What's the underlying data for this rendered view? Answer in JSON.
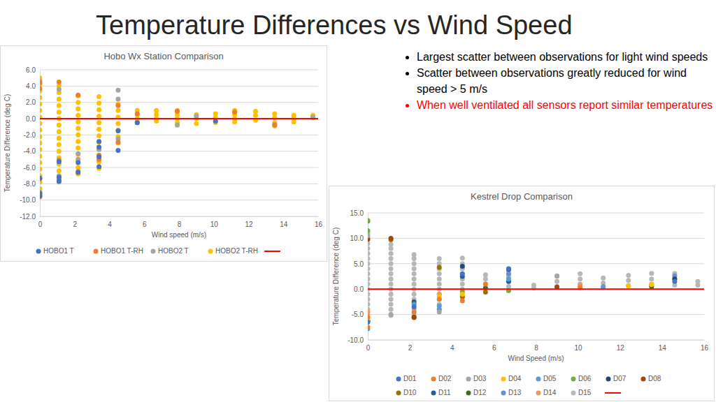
{
  "slide": {
    "title": "Temperature Differences vs Wind Speed",
    "bullets": [
      {
        "text": "Largest scatter between observations for light wind speeds",
        "color": "#000000"
      },
      {
        "text": "Scatter between observations greatly reduced for wind speed > 5 m/s",
        "color": "#000000"
      },
      {
        "text": "When well ventilated all sensors report similar temperatures",
        "color": "#ff0000"
      }
    ]
  },
  "chart_data": [
    {
      "type": "scatter",
      "title": "Hobo Wx Station Comparison",
      "xlabel": "Wind speed (m/s)",
      "ylabel": "Temperature Difference (deg C)",
      "xlim": [
        0,
        16
      ],
      "xticks": [
        0,
        2,
        4,
        6,
        8,
        10,
        12,
        14,
        16
      ],
      "ylim": [
        -12,
        6
      ],
      "yticks": [
        {
          "value": 6,
          "label": "6.0"
        },
        {
          "value": 4,
          "label": "4.0"
        },
        {
          "value": 2,
          "label": "2.0"
        },
        {
          "value": 0,
          "label": "0.0"
        },
        {
          "value": -2,
          "label": "-2.0"
        },
        {
          "value": -4,
          "label": "-4.0"
        },
        {
          "value": -6,
          "label": "-6.0"
        },
        {
          "value": -8,
          "label": "-8.0"
        },
        {
          "value": -10,
          "label": "-10.0"
        },
        {
          "value": -12,
          "label": "-12.0"
        }
      ],
      "grid": true,
      "legend": "bottom",
      "marker": "circle",
      "series": [
        {
          "name": "HOBO1 T",
          "color": "#4472c4",
          "x": [
            0,
            0,
            0,
            1.1,
            1.1,
            1.1,
            2.2,
            2.2,
            3.4,
            3.4,
            3.4,
            3.4,
            4.5,
            4.5,
            5.6,
            10.1
          ],
          "values": [
            -9.5,
            -9.2,
            -7.3,
            -5.3,
            -7.2,
            -7.7,
            -5.4,
            -6.6,
            -2.8,
            -3.5,
            -4.7,
            -5.9,
            -3.9,
            -1.5,
            -0.5,
            -0.3
          ]
        },
        {
          "name": "HOBO1 T-RH",
          "color": "#ed7d31",
          "x": [
            0,
            0,
            0,
            0,
            1.1,
            1.1,
            1.1,
            2.2,
            2.2,
            3.4,
            3.4,
            4.5,
            4.5,
            5.6,
            7.9,
            11.2,
            13.5
          ],
          "values": [
            4.4,
            3.7,
            -7.4,
            -9.6,
            4.5,
            -5.1,
            -7.5,
            2.9,
            -6.5,
            -4.5,
            -5.0,
            1.6,
            -2.9,
            0.6,
            0.9,
            0.8,
            -0.8
          ]
        },
        {
          "name": "HOBO2 T",
          "color": "#a5a5a5",
          "x": [
            0,
            0,
            1.1,
            1.1,
            2.2,
            2.2,
            3.4,
            4.5,
            4.5,
            4.5,
            5.6,
            7.9,
            9.0,
            13.5,
            15.7
          ],
          "values": [
            4.6,
            -9.0,
            3.6,
            -7.0,
            -4.3,
            -5.0,
            -3.8,
            3.5,
            2.4,
            -2.5,
            -0.5,
            -0.8,
            0.3,
            -0.7,
            0.2
          ]
        },
        {
          "name": "HOBO2 T-RH",
          "color": "#ffc000",
          "x": [
            0,
            0,
            0,
            0,
            0,
            0,
            0,
            0,
            0,
            0,
            0,
            0,
            0,
            0,
            0,
            0,
            0,
            0,
            0,
            1.1,
            1.1,
            1.1,
            1.1,
            1.1,
            1.1,
            1.1,
            1.1,
            1.1,
            1.1,
            1.1,
            1.1,
            1.1,
            1.1,
            1.1,
            1.1,
            2.2,
            2.2,
            2.2,
            2.2,
            2.2,
            2.2,
            2.2,
            2.2,
            2.2,
            2.2,
            2.2,
            2.2,
            2.2,
            3.4,
            3.4,
            3.4,
            3.4,
            3.4,
            3.4,
            3.4,
            3.4,
            3.4,
            3.4,
            3.4,
            3.4,
            4.5,
            4.5,
            4.5,
            4.5,
            4.5,
            4.5,
            4.5,
            5.6,
            5.6,
            5.6,
            5.6,
            6.7,
            6.7,
            6.7,
            6.7,
            7.9,
            7.9,
            7.9,
            7.9,
            9.0,
            9.0,
            9.0,
            10.1,
            10.1,
            10.1,
            11.2,
            11.2,
            11.2,
            11.2,
            12.4,
            12.4,
            12.4,
            13.5,
            13.5,
            13.5,
            13.5,
            14.6,
            14.6,
            14.6,
            15.7,
            15.7
          ],
          "values": [
            5.0,
            4.2,
            3.4,
            2.6,
            1.8,
            1.0,
            0.2,
            -0.6,
            -1.4,
            -2.2,
            -3.0,
            -3.8,
            -4.6,
            -5.4,
            -6.2,
            -7.0,
            -7.8,
            -8.6,
            -9.3,
            4.0,
            3.2,
            2.4,
            1.6,
            0.8,
            0.0,
            -0.8,
            -1.6,
            -2.4,
            -3.2,
            -4.0,
            -4.8,
            -5.6,
            -6.4,
            -7.2,
            -7.8,
            2.8,
            2.0,
            1.2,
            0.4,
            -0.4,
            -1.2,
            -2.0,
            -2.8,
            -3.6,
            -4.4,
            -5.2,
            -6.0,
            -6.8,
            2.7,
            1.9,
            1.1,
            0.3,
            -0.5,
            -1.3,
            -2.1,
            -2.9,
            -3.7,
            -4.5,
            -5.3,
            -6.1,
            1.8,
            1.0,
            0.2,
            -0.6,
            -1.4,
            -2.2,
            -3.0,
            1.0,
            0.5,
            0.0,
            -0.4,
            1.0,
            0.5,
            0.0,
            -0.3,
            1.0,
            0.5,
            0.0,
            -0.5,
            0.5,
            0.0,
            -0.6,
            0.6,
            0.1,
            -0.5,
            1.0,
            0.5,
            0.0,
            -0.4,
            0.9,
            0.4,
            -0.2,
            0.6,
            0.1,
            -0.5,
            -0.9,
            0.4,
            0.0,
            -0.4,
            0.4,
            0.1
          ]
        },
        {
          "type": "line",
          "color": "#ff0000",
          "line_style": "solid",
          "x": [
            0,
            16
          ],
          "values": [
            0,
            0
          ]
        }
      ]
    },
    {
      "type": "scatter",
      "title": "Kestrel Drop Comparison",
      "xlabel": "Wind Speed (m/s)",
      "ylabel": "Temperature Difference (deg C)",
      "xlim": [
        0,
        16
      ],
      "xticks": [
        0,
        2,
        4,
        6,
        8,
        10,
        12,
        14,
        16
      ],
      "ylim": [
        -10,
        15
      ],
      "yticks": [
        {
          "value": 15,
          "label": "15.0"
        },
        {
          "value": 10,
          "label": "10.0"
        },
        {
          "value": 5,
          "label": "5.0"
        },
        {
          "value": 0,
          "label": "0.0"
        },
        {
          "value": -5,
          "label": "-5.0"
        },
        {
          "value": -10,
          "label": "-10.0"
        }
      ],
      "grid": true,
      "legend": "bottom",
      "marker": "circle",
      "series": [
        {
          "name": "D01",
          "color": "#4472c4",
          "x": [
            0,
            2.2,
            4.5,
            6.7,
            14.6
          ],
          "values": [
            -6.5,
            -3.5,
            3.0,
            4.0,
            1.5
          ]
        },
        {
          "name": "D02",
          "color": "#ed7d31",
          "x": [
            0,
            0,
            2.2,
            3.4,
            4.5,
            5.6,
            10.1
          ],
          "values": [
            -7.5,
            -5.5,
            -4.5,
            -2.0,
            -2.3,
            1.0,
            0.3
          ]
        },
        {
          "name": "D03",
          "color": "#a5a5a5",
          "x": [
            0,
            1.1,
            3.4,
            9.0
          ],
          "values": [
            10.5,
            -5.0,
            -4.5,
            2.6
          ]
        },
        {
          "name": "D04",
          "color": "#ffc000",
          "x": [
            0,
            3.4,
            4.5,
            12.4,
            13.5
          ],
          "values": [
            -5.8,
            -1.5,
            -1.0,
            0.6,
            0.9
          ]
        },
        {
          "name": "D05",
          "color": "#5b9bd5",
          "x": [
            0,
            2.2,
            3.4,
            6.7,
            11.2
          ],
          "values": [
            -7.8,
            -3.0,
            -3.3,
            2.0,
            0.5
          ]
        },
        {
          "name": "D06",
          "color": "#70ad47",
          "x": [
            0,
            0,
            4.5,
            6.7
          ],
          "values": [
            13.5,
            11.5,
            -0.5,
            -0.3
          ]
        },
        {
          "name": "D07",
          "color": "#264478",
          "x": [
            0,
            4.5,
            6.7,
            14.6
          ],
          "values": [
            -6.3,
            4.5,
            3.9,
            2.0
          ]
        },
        {
          "name": "D08",
          "color": "#9e480e",
          "x": [
            0,
            1.1,
            2.2,
            9.0
          ],
          "values": [
            9.8,
            10.0,
            -5.6,
            0.4
          ]
        },
        {
          "name": "D10",
          "color": "#997300",
          "x": [
            0,
            1.1,
            3.4,
            4.5,
            5.6
          ],
          "values": [
            13.4,
            9.7,
            4.3,
            -1.5,
            -0.6
          ]
        },
        {
          "name": "D11",
          "color": "#255e91",
          "x": [
            2.2,
            4.5,
            6.7
          ],
          "values": [
            -2.5,
            2.5,
            1.5
          ]
        },
        {
          "name": "D12",
          "color": "#43682b",
          "x": [
            2.2,
            5.6,
            13.5
          ],
          "values": [
            -5.5,
            0.2,
            0.5
          ]
        },
        {
          "name": "D13",
          "color": "#698ed0",
          "x": [
            3.4,
            6.7,
            14.6
          ],
          "values": [
            -4.0,
            3.0,
            2.6
          ]
        },
        {
          "name": "D14",
          "color": "#f1975a",
          "x": [
            0,
            3.4,
            4.5,
            10.1,
            13.5
          ],
          "values": [
            -4.5,
            -1.0,
            -1.6,
            0.8,
            0.8
          ]
        },
        {
          "name": "D15",
          "color": "#b7b7b7",
          "x": [
            0,
            0,
            0,
            0,
            0,
            0,
            0,
            0,
            0,
            0,
            0,
            0,
            0,
            0,
            0,
            0,
            0,
            1.1,
            1.1,
            1.1,
            1.1,
            1.1,
            1.1,
            1.1,
            1.1,
            1.1,
            1.1,
            1.1,
            1.1,
            1.1,
            1.1,
            1.1,
            2.2,
            2.2,
            2.2,
            2.2,
            2.2,
            2.2,
            2.2,
            2.2,
            2.2,
            2.2,
            2.2,
            2.2,
            2.2,
            3.4,
            3.4,
            3.4,
            3.4,
            3.4,
            3.4,
            3.4,
            3.4,
            3.4,
            3.4,
            3.4,
            4.5,
            4.5,
            4.5,
            4.5,
            4.5,
            4.5,
            4.5,
            5.6,
            5.6,
            5.6,
            5.6,
            6.7,
            6.7,
            6.7,
            6.7,
            7.9,
            7.9,
            9.0,
            9.0,
            9.0,
            10.1,
            10.1,
            10.1,
            11.2,
            11.2,
            11.2,
            12.4,
            12.4,
            12.4,
            13.5,
            13.5,
            13.5,
            14.6,
            14.6,
            14.6,
            15.7,
            15.7
          ],
          "values": [
            11,
            10,
            9,
            8,
            7,
            6,
            5,
            4,
            3,
            2,
            1,
            0,
            -1,
            -2,
            -3,
            -4,
            -5,
            8.8,
            8,
            7,
            6,
            5,
            4,
            3,
            2,
            1,
            0,
            -1,
            -2,
            -3,
            -4,
            -5.2,
            6.8,
            6,
            5,
            4,
            3,
            2,
            1,
            0,
            -1,
            -2,
            -3,
            -4,
            -5,
            6.0,
            5,
            4,
            3,
            2,
            1,
            0,
            -1,
            -2,
            -3,
            -4,
            6.1,
            5,
            4,
            3,
            2,
            1,
            0,
            2.8,
            2,
            1,
            0.2,
            3.6,
            2.5,
            1.5,
            0.5,
            0.8,
            0.2,
            2.5,
            1.5,
            0.5,
            3.0,
            2.0,
            1.0,
            2.2,
            1.2,
            0.3,
            2.7,
            1.7,
            0.7,
            3.1,
            2.0,
            1.0,
            3.1,
            2.0,
            0.8,
            1.5,
            0.8
          ]
        },
        {
          "type": "line",
          "color": "#ff0000",
          "line_style": "solid",
          "x": [
            0,
            16
          ],
          "values": [
            0,
            0
          ]
        }
      ]
    }
  ]
}
